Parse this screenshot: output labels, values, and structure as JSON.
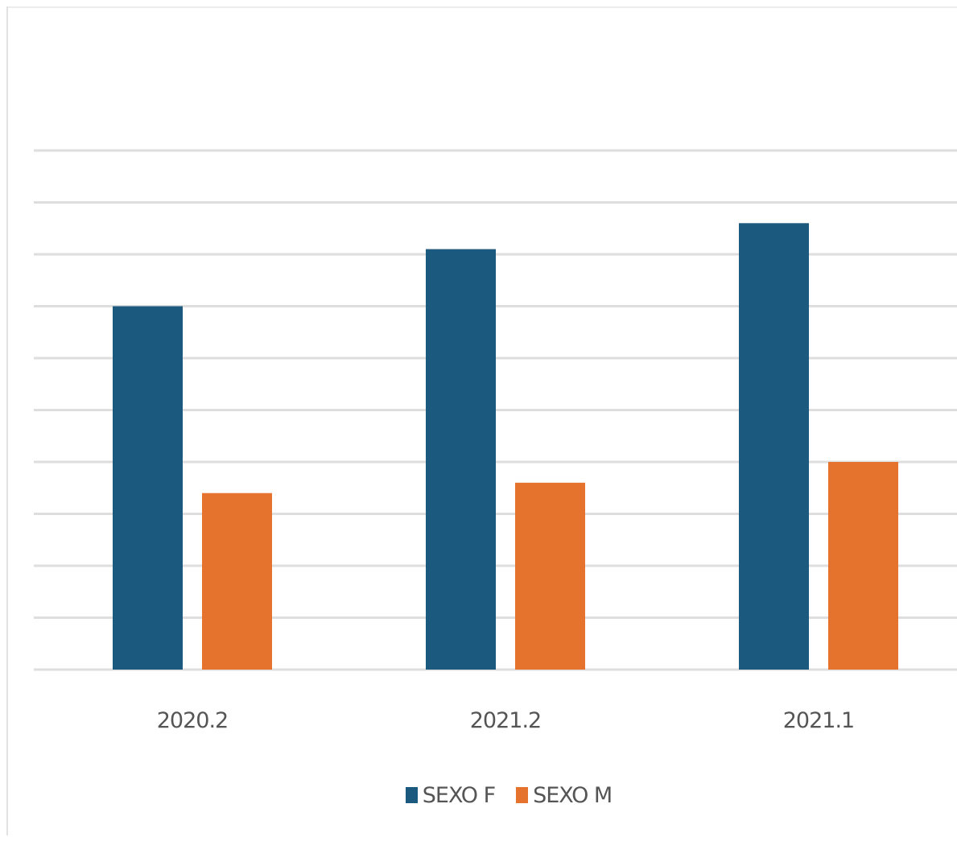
{
  "chart_data": {
    "type": "bar",
    "title": "",
    "xlabel": "",
    "ylabel": "",
    "categories": [
      "2020.2",
      "2021.2",
      "2021.1"
    ],
    "series": [
      {
        "name": "SEXO F",
        "color": "#1b5a7e",
        "values": [
          70,
          81,
          86
        ]
      },
      {
        "name": "SEXO M",
        "color": "#e5732d",
        "values": [
          34,
          36,
          40
        ]
      }
    ],
    "ylim": [
      0,
      100
    ],
    "grid": true,
    "gridline_count": 11,
    "y_tick_labels_shown": false,
    "legend_position": "bottom"
  }
}
